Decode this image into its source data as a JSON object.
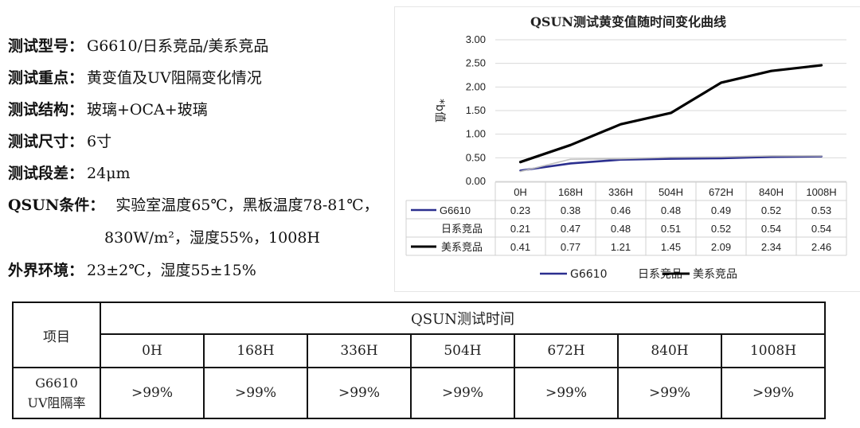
{
  "info": {
    "rows": [
      {
        "key": "测试型号：",
        "value": "G6610/日系竞品/美系竞品"
      },
      {
        "key": "测试重点：",
        "value": "黄变值及UV阻隔变化情况"
      },
      {
        "key": "测试结构：",
        "value": "玻璃+OCA+玻璃"
      },
      {
        "key": "测试尺寸：",
        "value": "6寸"
      },
      {
        "key": "测试段差：",
        "value": "24μm"
      },
      {
        "key": "QSUN条件：",
        "value": "实验室温度65℃，黑板温度78-81℃，"
      },
      {
        "key": "",
        "value": "830W/m²，湿度55%，1008H"
      },
      {
        "key": "外界环境：",
        "value": "23±2℃，湿度55±15%"
      }
    ]
  },
  "chart_data": {
    "type": "line",
    "title": "QSUN测试黄变值随时间变化曲线",
    "ylabel": "*b值",
    "xlabel": "",
    "ylim": [
      0,
      3
    ],
    "yticks": [
      "0.00",
      "0.50",
      "1.00",
      "1.50",
      "2.00",
      "2.50",
      "3.00"
    ],
    "categories": [
      "0H",
      "168H",
      "336H",
      "504H",
      "672H",
      "840H",
      "1008H"
    ],
    "grid": true,
    "legend": "bottom",
    "series": [
      {
        "name": "G6610",
        "color": "#2b2f8f",
        "values": [
          0.23,
          0.38,
          0.46,
          0.48,
          0.49,
          0.52,
          0.53
        ],
        "labels": [
          "0.23",
          "0.38",
          "0.46",
          "0.48",
          "0.49",
          "0.52",
          "0.53"
        ]
      },
      {
        "name": "日系竞品",
        "color": "#bfbfbf",
        "values": [
          0.21,
          0.47,
          0.48,
          0.51,
          0.52,
          0.54,
          0.54
        ],
        "labels": [
          "0.21",
          "0.47",
          "0.48",
          "0.51",
          "0.52",
          "0.54",
          "0.54"
        ]
      },
      {
        "name": "美系竞品",
        "color": "#000000",
        "values": [
          0.41,
          0.77,
          1.21,
          1.45,
          2.09,
          2.34,
          2.46
        ],
        "labels": [
          "0.41",
          "0.77",
          "1.21",
          "1.45",
          "2.09",
          "2.34",
          "2.46"
        ]
      }
    ]
  },
  "uv_table": {
    "item_header": "项目",
    "group_header": "QSUN测试时间",
    "times": [
      "0H",
      "168H",
      "336H",
      "504H",
      "672H",
      "840H",
      "1008H"
    ],
    "row_label_line1": "G6610",
    "row_label_line2": "UV阻隔率",
    "values": [
      ">99%",
      ">99%",
      ">99%",
      ">99%",
      ">99%",
      ">99%",
      ">99%"
    ]
  }
}
